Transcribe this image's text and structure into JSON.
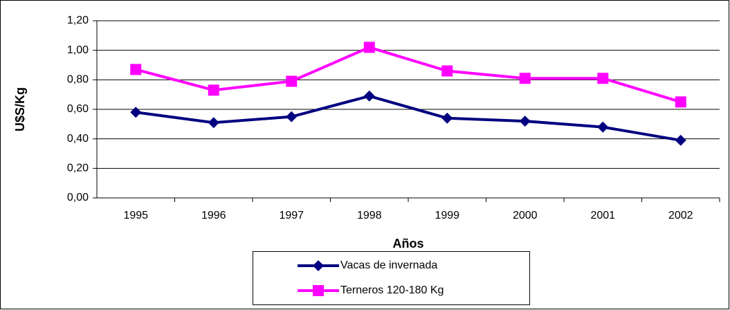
{
  "chart_data": {
    "type": "line",
    "y_label": "U$S/Kg",
    "x_label": "Años",
    "categories": [
      "1995",
      "1996",
      "1997",
      "1998",
      "1999",
      "2000",
      "2001",
      "2002"
    ],
    "series": [
      {
        "name": "Vacas de invernada",
        "color": "#000080",
        "marker": "diamond",
        "values": [
          0.58,
          0.51,
          0.55,
          0.69,
          0.54,
          0.52,
          0.48,
          0.39
        ]
      },
      {
        "name": "Terneros 120-180 Kg",
        "color": "#ff00ff",
        "marker": "square",
        "values": [
          0.87,
          0.73,
          0.79,
          1.02,
          0.86,
          0.81,
          0.81,
          0.65
        ]
      }
    ],
    "ylim": [
      0,
      1.2
    ],
    "yticks": [
      {
        "value": 0,
        "label": "0,00"
      },
      {
        "value": 0.2,
        "label": "0,20"
      },
      {
        "value": 0.4,
        "label": "0,40"
      },
      {
        "value": 0.6,
        "label": "0,60"
      },
      {
        "value": 0.8,
        "label": "0,80"
      },
      {
        "value": 1.0,
        "label": "1,00"
      },
      {
        "value": 1.2,
        "label": "1,20"
      }
    ],
    "grid": true,
    "legend": "bottom"
  }
}
